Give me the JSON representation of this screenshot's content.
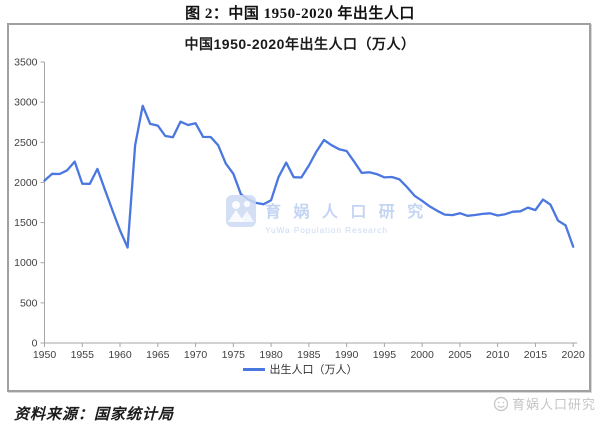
{
  "figure_caption": "图 2：中国 1950-2020 年出生人口",
  "chart": {
    "title": "中国1950-2020年出生人口（万人）",
    "legend_label": "出生人口（万人）"
  },
  "source_note": "资料来源：国家统计局",
  "watermark": {
    "name_cn": "育 娲 人 口 研 究",
    "name_en": "YuWa Population Research",
    "corner_text": "育娲人口研究"
  },
  "colors": {
    "line": "#4a77e0",
    "axis": "#a6a6a6",
    "tick_label": "#404040",
    "watermark_blue": "#cdd9f3",
    "watermark_gray": "#c5c5c5"
  },
  "chart_data": {
    "type": "line",
    "title": "中国1950-2020年出生人口（万人）",
    "xlabel": "",
    "ylabel": "",
    "ylim": [
      0,
      3500
    ],
    "ytick_interval": 500,
    "xticks": [
      1950,
      1955,
      1960,
      1965,
      1970,
      1975,
      1980,
      1985,
      1990,
      1995,
      2000,
      2005,
      2010,
      2015,
      2020
    ],
    "grid": false,
    "legend_position": "bottom",
    "series": [
      {
        "name": "出生人口（万人）",
        "x": [
          1950,
          1951,
          1952,
          1953,
          1954,
          1955,
          1956,
          1957,
          1958,
          1959,
          1960,
          1961,
          1962,
          1963,
          1964,
          1965,
          1966,
          1967,
          1968,
          1969,
          1970,
          1971,
          1972,
          1973,
          1974,
          1975,
          1976,
          1977,
          1978,
          1979,
          1980,
          1981,
          1982,
          1983,
          1984,
          1985,
          1986,
          1987,
          1988,
          1989,
          1990,
          1991,
          1992,
          1993,
          1994,
          1995,
          1996,
          1997,
          1998,
          1999,
          2000,
          2001,
          2002,
          2003,
          2004,
          2005,
          2006,
          2007,
          2008,
          2009,
          2010,
          2011,
          2012,
          2013,
          2014,
          2015,
          2016,
          2017,
          2018,
          2019,
          2020
        ],
        "values": [
          2023,
          2107,
          2105,
          2151,
          2260,
          1984,
          1982,
          2169,
          1909,
          1650,
          1402,
          1190,
          2460,
          2954,
          2729,
          2708,
          2578,
          2563,
          2757,
          2715,
          2736,
          2567,
          2566,
          2463,
          2235,
          2109,
          1853,
          1786,
          1745,
          1727,
          1779,
          2069,
          2247,
          2065,
          2062,
          2211,
          2384,
          2529,
          2464,
          2414,
          2391,
          2258,
          2119,
          2126,
          2104,
          2063,
          2067,
          2038,
          1942,
          1834,
          1771,
          1702,
          1647,
          1599,
          1593,
          1617,
          1584,
          1594,
          1608,
          1615,
          1588,
          1604,
          1635,
          1640,
          1687,
          1655,
          1786,
          1723,
          1523,
          1465,
          1200
        ]
      }
    ]
  }
}
